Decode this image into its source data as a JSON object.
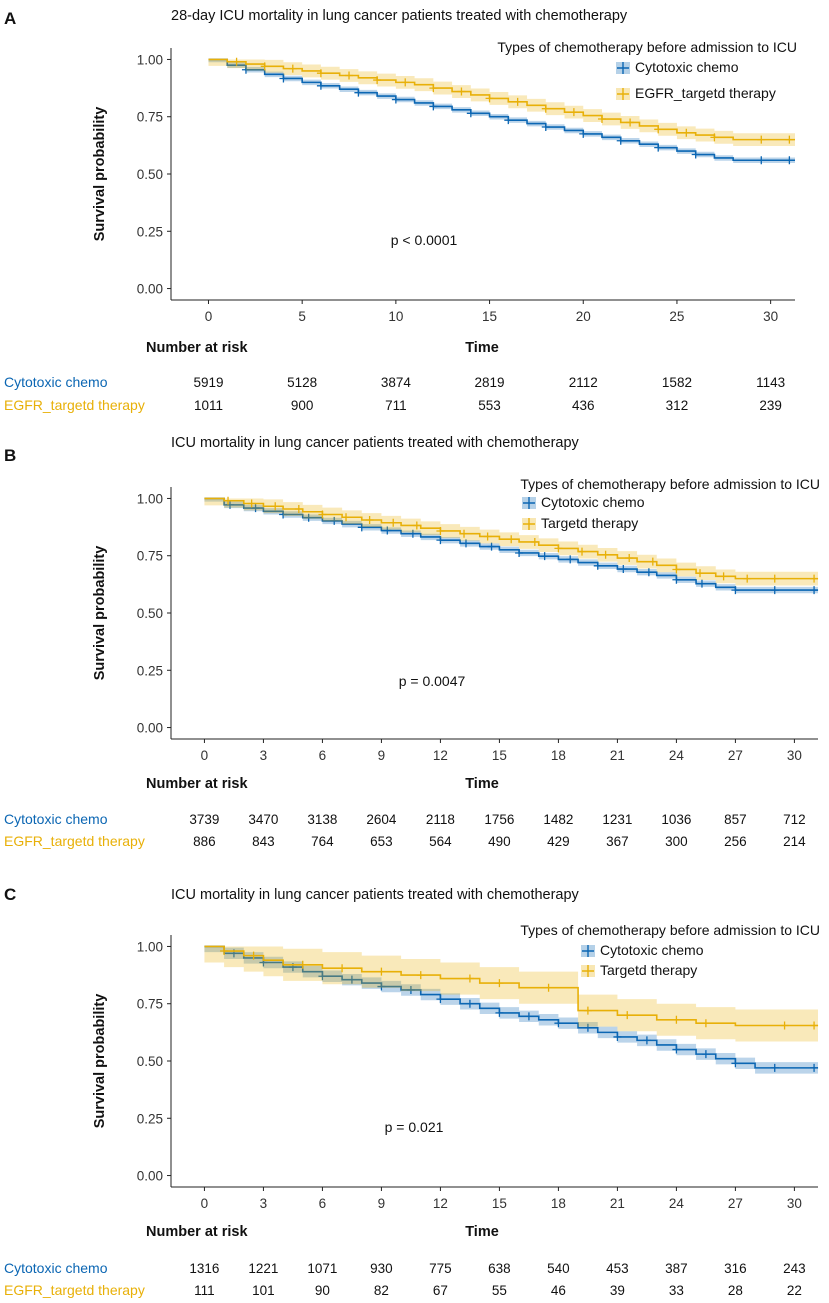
{
  "colors": {
    "cytotoxic": "#0B66B3",
    "targeted": "#E8B008",
    "axis": "#222222"
  },
  "chart_data": [
    {
      "panel_letter": "A",
      "type": "line",
      "subtype": "kaplan-meier",
      "title": "28-day ICU mortality in lung cancer patients treated with chemotherapy",
      "legend_title": "Types of chemotherapy before admission to ICU",
      "xlabel": "Time",
      "ylabel": "Survival probability",
      "xlim": [
        -2,
        31.3
      ],
      "ylim": [
        -0.05,
        1.05
      ],
      "x_ticks": [
        0,
        5,
        10,
        15,
        20,
        25,
        30
      ],
      "x_tick_labels": [
        "0",
        "5",
        "10",
        "15",
        "20",
        "25",
        "30"
      ],
      "y_ticks": [
        0,
        0.25,
        0.5,
        0.75,
        1
      ],
      "y_tick_labels": [
        "0.00",
        "0.25",
        "0.50",
        "0.75",
        "1.00"
      ],
      "p_value": "p < 0.0001",
      "risk_table_title": "Number at risk",
      "series": [
        {
          "name": "Cytotoxic chemo",
          "risk_label": "Cytotoxic chemo",
          "color_key": "cytotoxic",
          "x": [
            0,
            1,
            2,
            3,
            4,
            5,
            6,
            7,
            8,
            9,
            10,
            11,
            12,
            13,
            14,
            15,
            16,
            17,
            18,
            19,
            20,
            21,
            22,
            23,
            24,
            25,
            26,
            27,
            28,
            31.3
          ],
          "y": [
            1.0,
            0.975,
            0.955,
            0.935,
            0.917,
            0.9,
            0.885,
            0.87,
            0.855,
            0.84,
            0.825,
            0.81,
            0.795,
            0.78,
            0.765,
            0.75,
            0.735,
            0.72,
            0.705,
            0.69,
            0.675,
            0.66,
            0.645,
            0.63,
            0.615,
            0.6,
            0.585,
            0.57,
            0.56,
            0.56
          ],
          "ci": 0.012,
          "censor_x": [
            2,
            4,
            6,
            8,
            10,
            12,
            14,
            16,
            18,
            20,
            22,
            24,
            26,
            29.5,
            31
          ],
          "risk": [
            "5919",
            "5128",
            "3874",
            "2819",
            "2112",
            "1582",
            "1143"
          ]
        },
        {
          "name": "EGFR_targetd therapy",
          "risk_label": "EGFR_targetd therapy",
          "color_key": "targeted",
          "x": [
            0,
            1,
            2,
            3,
            4,
            5,
            6,
            7,
            8,
            9,
            10,
            11,
            12,
            13,
            14,
            15,
            16,
            17,
            18,
            19,
            20,
            21,
            22,
            23,
            24,
            25,
            26,
            27,
            28,
            31.3
          ],
          "y": [
            1.0,
            0.99,
            0.98,
            0.97,
            0.96,
            0.95,
            0.94,
            0.93,
            0.92,
            0.91,
            0.9,
            0.89,
            0.875,
            0.86,
            0.845,
            0.83,
            0.815,
            0.8,
            0.785,
            0.77,
            0.755,
            0.74,
            0.725,
            0.71,
            0.695,
            0.68,
            0.67,
            0.66,
            0.65,
            0.65
          ],
          "ci": 0.028,
          "censor_x": [
            1.5,
            3,
            4.5,
            6,
            7.5,
            9,
            10.5,
            12,
            13.5,
            15,
            16.5,
            18,
            19.5,
            21,
            22.5,
            24,
            25.5,
            27,
            29.5,
            31
          ],
          "risk": [
            "1011",
            "900",
            "711",
            "553",
            "436",
            "312",
            "239"
          ]
        }
      ]
    },
    {
      "panel_letter": "B",
      "type": "line",
      "subtype": "kaplan-meier",
      "title": "ICU mortality in lung cancer patients treated with chemotherapy",
      "legend_title": "Types of chemotherapy before admission to ICU",
      "xlabel": "Time",
      "ylabel": "Survival probability",
      "xlim": [
        -1.7,
        31.2
      ],
      "ylim": [
        -0.05,
        1.05
      ],
      "x_ticks": [
        0,
        3,
        6,
        9,
        12,
        15,
        18,
        21,
        24,
        27,
        30
      ],
      "x_tick_labels": [
        "0",
        "3",
        "6",
        "9",
        "12",
        "15",
        "18",
        "21",
        "24",
        "27",
        "30"
      ],
      "y_ticks": [
        0,
        0.25,
        0.5,
        0.75,
        1
      ],
      "y_tick_labels": [
        "0.00",
        "0.25",
        "0.50",
        "0.75",
        "1.00"
      ],
      "p_value": "p = 0.0047",
      "risk_table_title": "Number at risk",
      "series": [
        {
          "name": "Cytotoxic chemo",
          "risk_label": "Cytotoxic chemo",
          "color_key": "cytotoxic",
          "x": [
            0,
            1,
            2,
            3,
            4,
            5,
            6,
            7,
            8,
            9,
            10,
            11,
            12,
            13,
            14,
            15,
            16,
            17,
            18,
            19,
            20,
            21,
            22,
            23,
            24,
            25,
            26,
            27,
            31.2
          ],
          "y": [
            1.0,
            0.972,
            0.958,
            0.944,
            0.93,
            0.916,
            0.902,
            0.888,
            0.874,
            0.86,
            0.846,
            0.832,
            0.818,
            0.804,
            0.79,
            0.776,
            0.762,
            0.748,
            0.734,
            0.72,
            0.706,
            0.692,
            0.678,
            0.664,
            0.645,
            0.628,
            0.612,
            0.6,
            0.6
          ],
          "ci": 0.014,
          "censor_x": [
            1.3,
            2.6,
            4,
            5.3,
            6.6,
            8,
            9.3,
            10.6,
            12,
            13.3,
            14.6,
            16,
            17.3,
            18.6,
            20,
            21.3,
            22.6,
            24,
            25.3,
            27,
            29,
            31
          ],
          "risk": [
            "3739",
            "3470",
            "3138",
            "2604",
            "2118",
            "1756",
            "1482",
            "1231",
            "1036",
            "857",
            "712"
          ]
        },
        {
          "name": "Targetd therapy",
          "risk_label": "EGFR_targetd therapy",
          "color_key": "targeted",
          "x": [
            0,
            1,
            2,
            3,
            4,
            5,
            6,
            7,
            8,
            9,
            10,
            11,
            12,
            13,
            14,
            15,
            16,
            17,
            18,
            19,
            20,
            21,
            22,
            23,
            24,
            25,
            26,
            27,
            31.2
          ],
          "y": [
            1.0,
            0.99,
            0.978,
            0.966,
            0.954,
            0.942,
            0.93,
            0.918,
            0.906,
            0.894,
            0.882,
            0.87,
            0.858,
            0.846,
            0.834,
            0.822,
            0.81,
            0.796,
            0.782,
            0.768,
            0.754,
            0.74,
            0.724,
            0.708,
            0.69,
            0.674,
            0.66,
            0.65,
            0.65
          ],
          "ci": 0.03,
          "censor_x": [
            1.2,
            2.4,
            3.6,
            4.8,
            6,
            7.2,
            8.4,
            9.6,
            10.8,
            12,
            13.2,
            14.4,
            15.6,
            16.8,
            18,
            19.2,
            20.4,
            21.6,
            22.8,
            24,
            25.2,
            26.4,
            27.6,
            29,
            31
          ],
          "risk": [
            "886",
            "843",
            "764",
            "653",
            "564",
            "490",
            "429",
            "367",
            "300",
            "256",
            "214"
          ]
        }
      ]
    },
    {
      "panel_letter": "C",
      "type": "line",
      "subtype": "kaplan-meier",
      "title": "ICU mortality in lung cancer patients treated with chemotherapy",
      "legend_title": "Types of chemotherapy before admission to ICU",
      "xlabel": "Time",
      "ylabel": "Survival probability",
      "xlim": [
        -1.7,
        31.2
      ],
      "ylim": [
        -0.05,
        1.05
      ],
      "x_ticks": [
        0,
        3,
        6,
        9,
        12,
        15,
        18,
        21,
        24,
        27,
        30
      ],
      "x_tick_labels": [
        "0",
        "3",
        "6",
        "9",
        "12",
        "15",
        "18",
        "21",
        "24",
        "27",
        "30"
      ],
      "y_ticks": [
        0,
        0.25,
        0.5,
        0.75,
        1
      ],
      "y_tick_labels": [
        "0.00",
        "0.25",
        "0.50",
        "0.75",
        "1.00"
      ],
      "p_value": "p = 0.021",
      "risk_table_title": "Number at risk",
      "series": [
        {
          "name": "Cytotoxic chemo",
          "risk_label": "Cytotoxic chemo",
          "color_key": "cytotoxic",
          "x": [
            0,
            1,
            2,
            3,
            4,
            5,
            6,
            7,
            8,
            9,
            10,
            11,
            12,
            13,
            14,
            15,
            16,
            17,
            18,
            19,
            20,
            21,
            22,
            23,
            24,
            25,
            26,
            27,
            28,
            31.2
          ],
          "y": [
            1.0,
            0.97,
            0.95,
            0.93,
            0.91,
            0.89,
            0.87,
            0.855,
            0.84,
            0.825,
            0.81,
            0.79,
            0.77,
            0.75,
            0.73,
            0.71,
            0.695,
            0.68,
            0.665,
            0.645,
            0.625,
            0.605,
            0.59,
            0.57,
            0.55,
            0.53,
            0.51,
            0.49,
            0.47,
            0.47
          ],
          "ci": 0.025,
          "censor_x": [
            1.5,
            3,
            4.5,
            6,
            7.5,
            9,
            10.5,
            12,
            13.5,
            15,
            16.5,
            18,
            19.5,
            21,
            22.5,
            24,
            25.5,
            27,
            29,
            31
          ],
          "risk": [
            "1316",
            "1221",
            "1071",
            "930",
            "775",
            "638",
            "540",
            "453",
            "387",
            "316",
            "243"
          ]
        },
        {
          "name": "Targetd therapy",
          "risk_label": "EGFR_targetd therapy",
          "color_key": "targeted",
          "x": [
            0,
            1,
            2,
            3,
            4,
            6,
            8,
            10,
            12,
            14,
            16,
            19,
            21,
            23,
            25,
            27,
            31.2
          ],
          "y": [
            1.0,
            0.98,
            0.96,
            0.94,
            0.92,
            0.905,
            0.89,
            0.875,
            0.86,
            0.84,
            0.82,
            0.72,
            0.7,
            0.68,
            0.665,
            0.655,
            0.655
          ],
          "ci": 0.07,
          "censor_x": [
            1,
            2.5,
            5,
            7,
            9,
            11,
            13.5,
            15,
            17.5,
            19.5,
            21.5,
            24,
            25.5,
            29.5,
            31
          ],
          "risk": [
            "111",
            "101",
            "90",
            "82",
            "67",
            "55",
            "46",
            "39",
            "33",
            "28",
            "22"
          ]
        }
      ]
    }
  ]
}
